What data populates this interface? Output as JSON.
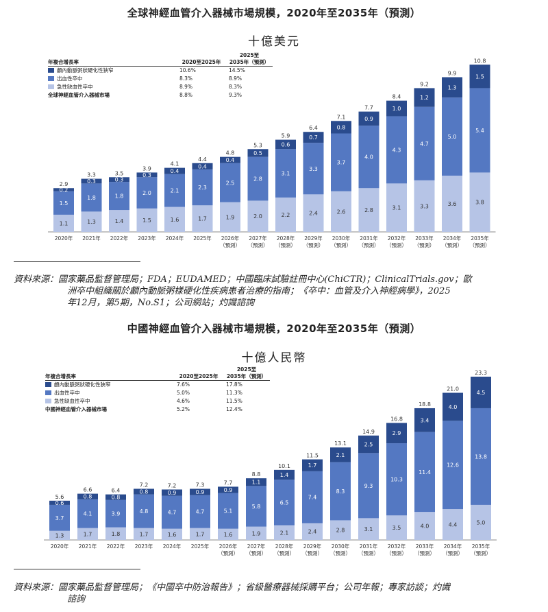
{
  "colors": {
    "top": "#2a4b8d",
    "mid": "#5478c2",
    "bottom": "#b6c4e6"
  },
  "charts": [
    {
      "title": "全球神經血管介入器械市場規模，2020年至2035年（預測）",
      "unit": "十億美元",
      "cagr": {
        "header": [
          "年複合增長率",
          "2020至2025年",
          "2025至",
          "2035年（預測）"
        ],
        "rows": [
          {
            "name": "顱內動脈粥狀硬化性狹窄",
            "v1": "10.6%",
            "v2": "14.5%"
          },
          {
            "name": "出血性卒中",
            "v1": "8.3%",
            "v2": "8.9%"
          },
          {
            "name": "急性缺血性卒中",
            "v1": "8.9%",
            "v2": "8.3%"
          }
        ],
        "total": {
          "name": "全球神經血管介入器械市場",
          "v1": "8.8%",
          "v2": "9.3%"
        }
      },
      "source": {
        "label": "資料來源：",
        "lines": [
          "國家藥品監督管理局；FDA；EUDAMED；中國臨床試驗註冊中心(ChiCTR)；ClinicalTrials.gov；歐",
          "洲卒中組織關於顱內動脈粥樣硬化性疾病患者治療的指南；《卒中：血管及介入神經病學》，2025",
          "年12月，第5期，No.S1；公司網站；灼識諮詢"
        ]
      }
    },
    {
      "title": "中國神經血管介入器械市場規模，2020年至2035年（預測）",
      "unit": "十億人民幣",
      "cagr": {
        "header": [
          "年複合增長率",
          "2020至2025年",
          "2025至",
          "2035年（預測）"
        ],
        "rows": [
          {
            "name": "顱內動脈粥狀硬化性狹窄",
            "v1": "7.6%",
            "v2": "17.8%"
          },
          {
            "name": "出血性卒中",
            "v1": "5.0%",
            "v2": "11.3%"
          },
          {
            "name": "急性缺血性卒中",
            "v1": "4.6%",
            "v2": "11.5%"
          }
        ],
        "total": {
          "name": "中國神經血管介入器械市場",
          "v1": "5.2%",
          "v2": "12.4%"
        }
      },
      "source": {
        "label": "資料來源：",
        "lines": [
          "國家藥品監督管理局；《中國卒中防治報告》；省級醫療器械採購平台；公司年報；專家訪談；灼識",
          "諮詢"
        ]
      }
    }
  ],
  "chart_data": [
    {
      "type": "bar",
      "stacked": true,
      "title": "全球神經血管介入器械市場規模，2020年至2035年（預測）",
      "ylabel": "十億美元",
      "categories": [
        "2020年",
        "2021年",
        "2022年",
        "2023年",
        "2024年",
        "2025年",
        "2026年",
        "2027年",
        "2028年",
        "2029年",
        "2030年",
        "2031年",
        "2032年",
        "2033年",
        "2034年",
        "2035年"
      ],
      "forecast_label": "（預測）",
      "forecast_from_index": 6,
      "series": [
        {
          "name": "急性缺血性卒中",
          "values": [
            1.1,
            1.3,
            1.4,
            1.5,
            1.6,
            1.7,
            1.9,
            2.0,
            2.2,
            2.4,
            2.6,
            2.8,
            3.1,
            3.3,
            3.6,
            3.8
          ]
        },
        {
          "name": "出血性卒中",
          "values": [
            1.5,
            1.8,
            1.8,
            2.0,
            2.1,
            2.3,
            2.5,
            2.8,
            3.1,
            3.3,
            3.7,
            4.0,
            4.3,
            4.7,
            5.0,
            5.4
          ]
        },
        {
          "name": "顱內動脈粥狀硬化性狹窄",
          "values": [
            0.2,
            0.3,
            0.3,
            0.3,
            0.4,
            0.4,
            0.4,
            0.5,
            0.6,
            0.7,
            0.8,
            0.9,
            1.0,
            1.2,
            1.3,
            1.5
          ]
        }
      ],
      "totals": [
        2.9,
        3.3,
        3.5,
        3.9,
        4.1,
        4.4,
        4.8,
        5.3,
        5.9,
        6.4,
        7.1,
        7.7,
        8.4,
        9.2,
        9.9,
        10.8
      ],
      "ylim": [
        0,
        10.8
      ]
    },
    {
      "type": "bar",
      "stacked": true,
      "title": "中國神經血管介入器械市場規模，2020年至2035年（預測）",
      "ylabel": "十億人民幣",
      "categories": [
        "2020年",
        "2021年",
        "2022年",
        "2023年",
        "2024年",
        "2025年",
        "2026年",
        "2027年",
        "2028年",
        "2029年",
        "2030年",
        "2031年",
        "2032年",
        "2033年",
        "2034年",
        "2035年"
      ],
      "forecast_label": "（預測）",
      "forecast_from_index": 6,
      "series": [
        {
          "name": "急性缺血性卒中",
          "values": [
            1.3,
            1.7,
            1.8,
            1.7,
            1.6,
            1.7,
            1.6,
            1.9,
            2.1,
            2.4,
            2.8,
            3.1,
            3.5,
            4.0,
            4.4,
            5.0
          ]
        },
        {
          "name": "出血性卒中",
          "values": [
            3.7,
            4.1,
            3.9,
            4.8,
            4.7,
            4.7,
            5.1,
            5.8,
            6.5,
            7.4,
            8.3,
            9.3,
            10.3,
            11.4,
            12.6,
            13.8
          ]
        },
        {
          "name": "顱內動脈粥狀硬化性狹窄",
          "values": [
            0.6,
            0.8,
            0.8,
            0.8,
            0.9,
            0.9,
            0.9,
            1.1,
            1.4,
            1.7,
            2.1,
            2.5,
            2.9,
            3.4,
            4.0,
            4.5
          ]
        }
      ],
      "totals": [
        5.6,
        6.6,
        6.4,
        7.2,
        7.2,
        7.3,
        7.7,
        8.8,
        10.1,
        11.5,
        13.1,
        14.9,
        16.8,
        18.8,
        21.0,
        23.3
      ],
      "ylim": [
        0,
        23.3
      ]
    }
  ]
}
